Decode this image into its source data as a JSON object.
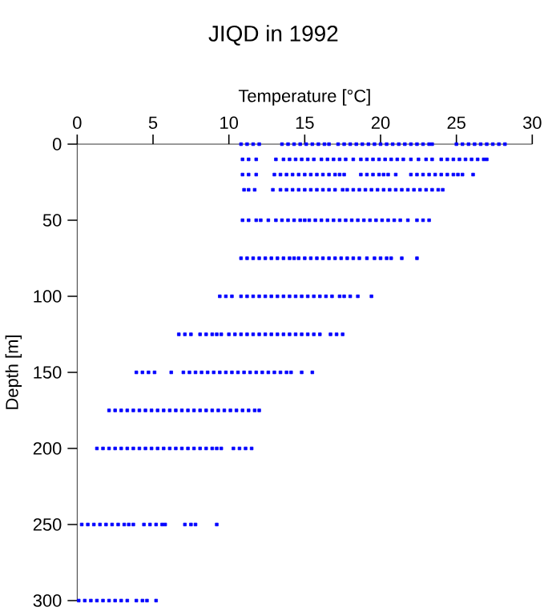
{
  "chart_data": {
    "type": "scatter",
    "title": "JIQD in 1992",
    "xlabel": "Temperature [°C]",
    "ylabel": "Depth [m]",
    "xlim": [
      0,
      30
    ],
    "xticks": [
      0,
      5,
      10,
      15,
      20,
      25,
      30
    ],
    "ylim": [
      300,
      0
    ],
    "yticks": [
      0,
      50,
      100,
      150,
      200,
      250,
      300
    ],
    "marker": "square",
    "grid": false,
    "series": [
      {
        "color": "#0000ff",
        "x": [
          10.8,
          11.2,
          11.6,
          12.0,
          13.5,
          13.9,
          14.3,
          14.7,
          15.1,
          15.5,
          15.9,
          16.3,
          16.6,
          17.2,
          17.6,
          18.0,
          18.4,
          18.8,
          19.2,
          19.6,
          20.0,
          20.4,
          20.8,
          21.2,
          21.6,
          22.0,
          22.4,
          22.8,
          23.2,
          23.4,
          25.0,
          25.4,
          25.8,
          26.2,
          26.6,
          27.0,
          27.4,
          27.8,
          28.2
        ],
        "values": [
          0,
          0,
          0,
          0,
          0,
          0,
          0,
          0,
          0,
          0,
          0,
          0,
          0,
          0,
          0,
          0,
          0,
          0,
          0,
          0,
          0,
          0,
          0,
          0,
          0,
          0,
          0,
          0,
          0,
          0,
          0,
          0,
          0,
          0,
          0,
          0,
          0,
          0,
          0
        ]
      },
      {
        "color": "#0000ff",
        "x": [
          10.9,
          11.3,
          11.8,
          13.1,
          13.6,
          14.0,
          14.4,
          14.8,
          15.2,
          15.6,
          16.1,
          16.5,
          16.9,
          17.3,
          17.7,
          18.2,
          18.7,
          19.1,
          19.5,
          19.9,
          20.3,
          20.7,
          21.1,
          21.5,
          22.0,
          22.5,
          23.0,
          23.4,
          24.0,
          24.4,
          24.8,
          25.2,
          25.6,
          26.0,
          26.4,
          26.8,
          27.0
        ],
        "values": [
          10,
          10,
          10,
          10,
          10,
          10,
          10,
          10,
          10,
          10,
          10,
          10,
          10,
          10,
          10,
          10,
          10,
          10,
          10,
          10,
          10,
          10,
          10,
          10,
          10,
          10,
          10,
          10,
          10,
          10,
          10,
          10,
          10,
          10,
          10,
          10,
          10
        ]
      },
      {
        "color": "#0000ff",
        "x": [
          10.9,
          11.3,
          11.8,
          13.0,
          13.4,
          13.8,
          14.2,
          14.6,
          15.0,
          15.4,
          15.8,
          16.2,
          16.6,
          17.0,
          17.3,
          17.6,
          18.7,
          19.1,
          19.5,
          19.9,
          20.2,
          20.5,
          21.0,
          22.0,
          22.4,
          22.8,
          23.2,
          23.6,
          24.0,
          24.4,
          24.8,
          25.1,
          25.4,
          26.1
        ],
        "values": [
          20,
          20,
          20,
          20,
          20,
          20,
          20,
          20,
          20,
          20,
          20,
          20,
          20,
          20,
          20,
          20,
          20,
          20,
          20,
          20,
          20,
          20,
          20,
          20,
          20,
          20,
          20,
          20,
          20,
          20,
          20,
          20,
          20,
          20
        ]
      },
      {
        "color": "#0000ff",
        "x": [
          11.0,
          11.3,
          11.7,
          12.9,
          13.4,
          13.8,
          14.2,
          14.6,
          15.0,
          15.4,
          15.8,
          16.2,
          16.6,
          17.0,
          17.5,
          17.8,
          18.2,
          18.6,
          19.0,
          19.4,
          19.8,
          20.2,
          20.6,
          21.0,
          21.4,
          21.8,
          22.2,
          22.6,
          23.0,
          23.4,
          23.8,
          24.1
        ],
        "values": [
          30,
          30,
          30,
          30,
          30,
          30,
          30,
          30,
          30,
          30,
          30,
          30,
          30,
          30,
          30,
          30,
          30,
          30,
          30,
          30,
          30,
          30,
          30,
          30,
          30,
          30,
          30,
          30,
          30,
          30,
          30,
          30
        ]
      },
      {
        "color": "#0000ff",
        "x": [
          10.9,
          11.3,
          11.8,
          12.1,
          12.6,
          13.1,
          13.5,
          13.9,
          14.3,
          14.7,
          15.0,
          15.3,
          15.7,
          16.1,
          16.5,
          16.9,
          17.3,
          17.7,
          18.1,
          18.5,
          18.9,
          19.3,
          19.7,
          20.1,
          20.5,
          20.9,
          21.3,
          21.8,
          22.4,
          22.8,
          23.2
        ],
        "values": [
          50,
          50,
          50,
          50,
          50,
          50,
          50,
          50,
          50,
          50,
          50,
          50,
          50,
          50,
          50,
          50,
          50,
          50,
          50,
          50,
          50,
          50,
          50,
          50,
          50,
          50,
          50,
          50,
          50,
          50,
          50
        ]
      },
      {
        "color": "#0000ff",
        "x": [
          10.8,
          11.2,
          11.6,
          12.0,
          12.4,
          12.8,
          13.2,
          13.6,
          14.0,
          14.3,
          14.6,
          15.0,
          15.4,
          15.8,
          16.2,
          16.6,
          17.0,
          17.4,
          17.8,
          18.2,
          18.6,
          19.1,
          19.6,
          20.0,
          20.4,
          20.7,
          21.4,
          22.4
        ],
        "values": [
          75,
          75,
          75,
          75,
          75,
          75,
          75,
          75,
          75,
          75,
          75,
          75,
          75,
          75,
          75,
          75,
          75,
          75,
          75,
          75,
          75,
          75,
          75,
          75,
          75,
          75,
          75,
          75
        ]
      },
      {
        "color": "#0000ff",
        "x": [
          9.4,
          9.8,
          10.2,
          10.8,
          11.2,
          11.6,
          12.0,
          12.4,
          12.8,
          13.2,
          13.6,
          14.0,
          14.4,
          14.8,
          15.2,
          15.6,
          16.0,
          16.4,
          16.8,
          17.3,
          17.6,
          18.0,
          18.5,
          19.4
        ],
        "values": [
          100,
          100,
          100,
          100,
          100,
          100,
          100,
          100,
          100,
          100,
          100,
          100,
          100,
          100,
          100,
          100,
          100,
          100,
          100,
          100,
          100,
          100,
          100,
          100
        ]
      },
      {
        "color": "#0000ff",
        "x": [
          6.7,
          7.1,
          7.5,
          8.1,
          8.5,
          8.9,
          9.2,
          9.5,
          10.0,
          10.4,
          10.8,
          11.2,
          11.6,
          12.0,
          12.4,
          12.8,
          13.2,
          13.6,
          14.0,
          14.4,
          14.8,
          15.2,
          15.6,
          16.0,
          16.7,
          17.1,
          17.5
        ],
        "values": [
          125,
          125,
          125,
          125,
          125,
          125,
          125,
          125,
          125,
          125,
          125,
          125,
          125,
          125,
          125,
          125,
          125,
          125,
          125,
          125,
          125,
          125,
          125,
          125,
          125,
          125,
          125
        ]
      },
      {
        "color": "#0000ff",
        "x": [
          3.9,
          4.3,
          4.7,
          5.1,
          6.2,
          7.0,
          7.4,
          7.8,
          8.2,
          8.6,
          9.0,
          9.4,
          9.8,
          10.2,
          10.6,
          11.0,
          11.4,
          11.8,
          12.2,
          12.6,
          13.0,
          13.4,
          13.8,
          14.1,
          14.8,
          15.5
        ],
        "values": [
          150,
          150,
          150,
          150,
          150,
          150,
          150,
          150,
          150,
          150,
          150,
          150,
          150,
          150,
          150,
          150,
          150,
          150,
          150,
          150,
          150,
          150,
          150,
          150,
          150,
          150
        ]
      },
      {
        "color": "#0000ff",
        "x": [
          2.1,
          2.5,
          2.9,
          3.3,
          3.7,
          4.1,
          4.5,
          4.9,
          5.3,
          5.7,
          6.1,
          6.5,
          6.9,
          7.3,
          7.7,
          8.1,
          8.5,
          8.9,
          9.3,
          9.7,
          10.1,
          10.5,
          10.9,
          11.3,
          11.7,
          12.0
        ],
        "values": [
          175,
          175,
          175,
          175,
          175,
          175,
          175,
          175,
          175,
          175,
          175,
          175,
          175,
          175,
          175,
          175,
          175,
          175,
          175,
          175,
          175,
          175,
          175,
          175,
          175,
          175
        ]
      },
      {
        "color": "#0000ff",
        "x": [
          1.3,
          1.7,
          2.1,
          2.5,
          2.9,
          3.3,
          3.7,
          4.1,
          4.5,
          4.9,
          5.3,
          5.7,
          6.1,
          6.5,
          6.9,
          7.3,
          7.7,
          8.1,
          8.5,
          8.9,
          9.2,
          9.5,
          10.3,
          10.7,
          11.1,
          11.5
        ],
        "values": [
          200,
          200,
          200,
          200,
          200,
          200,
          200,
          200,
          200,
          200,
          200,
          200,
          200,
          200,
          200,
          200,
          200,
          200,
          200,
          200,
          200,
          200,
          200,
          200,
          200,
          200
        ]
      },
      {
        "color": "#0000ff",
        "x": [
          0.3,
          0.7,
          1.1,
          1.5,
          1.9,
          2.3,
          2.7,
          3.1,
          3.4,
          3.7,
          4.4,
          4.8,
          5.2,
          5.6,
          5.8,
          7.1,
          7.5,
          7.8,
          9.2
        ],
        "values": [
          250,
          250,
          250,
          250,
          250,
          250,
          250,
          250,
          250,
          250,
          250,
          250,
          250,
          250,
          250,
          250,
          250,
          250,
          250
        ]
      },
      {
        "color": "#0000ff",
        "x": [
          0.1,
          0.5,
          0.9,
          1.3,
          1.7,
          2.1,
          2.5,
          2.9,
          3.3,
          3.9,
          4.3,
          4.6,
          5.2
        ],
        "values": [
          300,
          300,
          300,
          300,
          300,
          300,
          300,
          300,
          300,
          300,
          300,
          300,
          300
        ]
      }
    ]
  }
}
